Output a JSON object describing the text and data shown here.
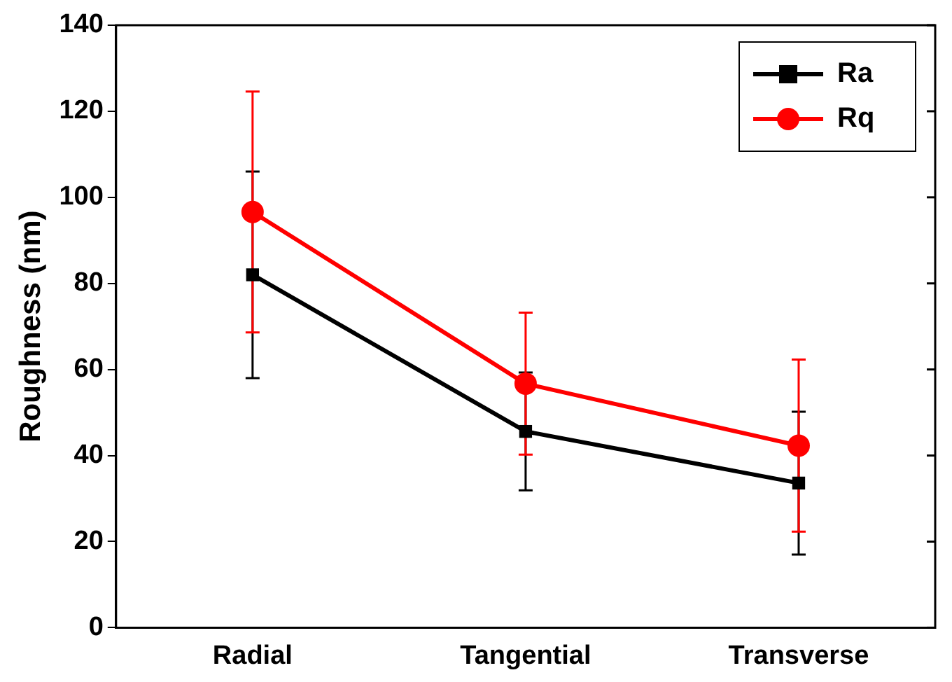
{
  "chart_data": {
    "type": "line",
    "ylabel": "Roughness (nm)",
    "categories": [
      "Radial",
      "Tangential",
      "Transverse"
    ],
    "series": [
      {
        "name": "Ra",
        "color": "#000000",
        "marker": "square",
        "values": [
          82,
          45.6,
          33.6
        ],
        "errors": [
          24,
          13.7,
          16.6
        ]
      },
      {
        "name": "Rq",
        "color": "#ff0000",
        "marker": "circle",
        "values": [
          96.6,
          56.7,
          42.3
        ],
        "errors": [
          28,
          16.5,
          20
        ]
      }
    ],
    "ylim": [
      0,
      140
    ],
    "yticks": [
      0,
      20,
      40,
      60,
      80,
      100,
      120,
      140
    ],
    "grid": false,
    "legend": "top right"
  }
}
